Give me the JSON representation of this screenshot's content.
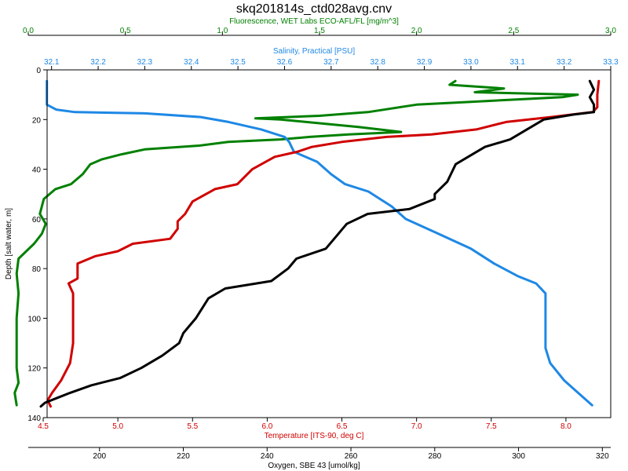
{
  "chart_data": {
    "type": "line",
    "title": "skq201814s_ctd028avg.cnv",
    "grid": false,
    "legend": "none",
    "y_axis": {
      "label": "Depth [salt water, m]",
      "range": [
        0,
        140
      ],
      "inverted": true,
      "ticks": [
        0,
        20,
        40,
        60,
        80,
        100,
        120,
        140
      ]
    },
    "x_axes": [
      {
        "id": "fluorescence",
        "label": "Fluorescence, WET Labs ECO-AFL/FL [mg/m^3]",
        "position": "top-outer",
        "color": "#008000",
        "range": [
          0.0,
          3.0
        ],
        "ticks": [
          0.0,
          0.5,
          1.0,
          1.5,
          2.0,
          2.5,
          3.0
        ],
        "tick_labels": [
          "0.0",
          "0.5",
          "1.0",
          "1.5",
          "2.0",
          "2.5",
          "3.0"
        ]
      },
      {
        "id": "salinity",
        "label": "Salinity, Practical [PSU]",
        "position": "top-inner",
        "color": "#1E88E5",
        "range": [
          32.05,
          33.3
        ],
        "ticks": [
          32.1,
          32.2,
          32.3,
          32.4,
          32.5,
          32.6,
          32.7,
          32.8,
          32.9,
          33.0,
          33.1,
          33.2,
          33.3
        ],
        "tick_labels": [
          "32.1",
          "32.2",
          "32.3",
          "32.4",
          "32.5",
          "32.6",
          "32.7",
          "32.8",
          "32.9",
          "33.0",
          "33.1",
          "33.2",
          "33.3"
        ]
      },
      {
        "id": "temperature",
        "label": "Temperature [ITS-90, deg C]",
        "position": "bottom-inner",
        "color": "#D00000",
        "range": [
          4.4,
          8.3
        ],
        "ticks": [
          4.5,
          5.0,
          5.5,
          6.0,
          6.5,
          7.0,
          7.5,
          8.0
        ],
        "tick_labels": [
          "4.5",
          "5.0",
          "5.5",
          "6.0",
          "6.5",
          "7.0",
          "7.5",
          "8.0"
        ]
      },
      {
        "id": "oxygen",
        "label": "Oxygen, SBE 43 [umol/kg]",
        "position": "bottom-outer",
        "color": "#000000",
        "range": [
          183,
          322
        ],
        "ticks": [
          200,
          220,
          240,
          260,
          280,
          300,
          320
        ],
        "tick_labels": [
          "200",
          "220",
          "240",
          "260",
          "280",
          "300",
          "320"
        ]
      }
    ],
    "series": [
      {
        "axis": "fluorescence",
        "color": "#008000",
        "points": [
          [
            2.2,
            4.5
          ],
          [
            2.17,
            6
          ],
          [
            2.45,
            7.5
          ],
          [
            2.3,
            9
          ],
          [
            2.83,
            10
          ],
          [
            2.75,
            11
          ],
          [
            2.25,
            13
          ],
          [
            2.0,
            14
          ],
          [
            1.75,
            17
          ],
          [
            1.5,
            18.5
          ],
          [
            1.17,
            19.5
          ],
          [
            1.3,
            20
          ],
          [
            1.5,
            21.5
          ],
          [
            1.7,
            23
          ],
          [
            1.92,
            25
          ],
          [
            1.65,
            26
          ],
          [
            1.45,
            27
          ],
          [
            1.3,
            28
          ],
          [
            1.03,
            29
          ],
          [
            0.88,
            30.5
          ],
          [
            0.6,
            32
          ],
          [
            0.48,
            34
          ],
          [
            0.38,
            36
          ],
          [
            0.32,
            38
          ],
          [
            0.28,
            42
          ],
          [
            0.22,
            46
          ],
          [
            0.14,
            48
          ],
          [
            0.08,
            52
          ],
          [
            0.06,
            58
          ],
          [
            0.09,
            62
          ],
          [
            0.07,
            66
          ],
          [
            0.03,
            70
          ],
          [
            -0.05,
            76
          ],
          [
            -0.06,
            82
          ],
          [
            -0.05,
            90
          ],
          [
            -0.06,
            100
          ],
          [
            -0.06,
            110
          ],
          [
            -0.06,
            120
          ],
          [
            -0.05,
            126
          ],
          [
            -0.07,
            130
          ],
          [
            -0.06,
            135
          ]
        ]
      },
      {
        "axis": "salinity",
        "color": "#1E88E5",
        "points": [
          [
            32.09,
            4.5
          ],
          [
            32.09,
            10
          ],
          [
            32.09,
            14
          ],
          [
            32.11,
            16
          ],
          [
            32.15,
            17
          ],
          [
            32.3,
            17.5
          ],
          [
            32.42,
            19
          ],
          [
            32.48,
            21
          ],
          [
            32.55,
            24
          ],
          [
            32.6,
            27
          ],
          [
            32.61,
            29
          ],
          [
            32.62,
            33
          ],
          [
            32.67,
            37
          ],
          [
            32.7,
            42
          ],
          [
            32.73,
            46
          ],
          [
            32.78,
            49
          ],
          [
            32.83,
            55
          ],
          [
            32.86,
            60
          ],
          [
            32.93,
            66
          ],
          [
            33.0,
            72
          ],
          [
            33.05,
            78
          ],
          [
            33.1,
            83
          ],
          [
            33.14,
            86
          ],
          [
            33.16,
            90
          ],
          [
            33.16,
            105
          ],
          [
            33.16,
            112
          ],
          [
            33.17,
            118
          ],
          [
            33.2,
            125
          ],
          [
            33.23,
            130
          ],
          [
            33.26,
            135
          ]
        ]
      },
      {
        "axis": "temperature",
        "color": "#D00000",
        "points": [
          [
            8.22,
            4.5
          ],
          [
            8.21,
            10
          ],
          [
            8.21,
            15
          ],
          [
            8.18,
            17
          ],
          [
            7.9,
            19
          ],
          [
            7.6,
            21
          ],
          [
            7.4,
            24
          ],
          [
            7.1,
            26
          ],
          [
            6.8,
            27
          ],
          [
            6.5,
            29
          ],
          [
            6.3,
            31
          ],
          [
            6.2,
            33
          ],
          [
            6.05,
            35
          ],
          [
            5.9,
            40
          ],
          [
            5.8,
            46
          ],
          [
            5.65,
            48
          ],
          [
            5.5,
            53
          ],
          [
            5.45,
            58
          ],
          [
            5.4,
            61
          ],
          [
            5.4,
            64
          ],
          [
            5.35,
            68
          ],
          [
            5.1,
            70
          ],
          [
            5.0,
            73
          ],
          [
            4.85,
            75
          ],
          [
            4.73,
            78
          ],
          [
            4.73,
            84
          ],
          [
            4.67,
            86
          ],
          [
            4.7,
            90
          ],
          [
            4.7,
            100
          ],
          [
            4.7,
            110
          ],
          [
            4.68,
            118
          ],
          [
            4.62,
            125
          ],
          [
            4.56,
            130
          ],
          [
            4.53,
            133
          ],
          [
            4.55,
            135.5
          ]
        ]
      },
      {
        "axis": "oxygen",
        "color": "#000000",
        "points": [
          [
            317,
            4.5
          ],
          [
            318,
            8
          ],
          [
            317,
            11
          ],
          [
            318,
            14
          ],
          [
            318,
            17
          ],
          [
            313,
            18
          ],
          [
            306,
            20
          ],
          [
            302,
            24
          ],
          [
            298,
            28
          ],
          [
            292,
            31
          ],
          [
            289,
            34
          ],
          [
            285,
            38
          ],
          [
            283,
            45
          ],
          [
            280,
            50
          ],
          [
            280,
            52
          ],
          [
            274,
            56
          ],
          [
            264,
            58
          ],
          [
            259,
            62
          ],
          [
            256,
            68
          ],
          [
            254,
            72
          ],
          [
            247,
            76
          ],
          [
            245,
            80
          ],
          [
            241,
            85
          ],
          [
            230,
            88
          ],
          [
            226,
            92
          ],
          [
            223,
            100
          ],
          [
            220,
            106
          ],
          [
            219,
            110
          ],
          [
            215,
            115
          ],
          [
            210,
            120
          ],
          [
            205,
            124
          ],
          [
            198,
            127
          ],
          [
            193,
            130
          ],
          [
            190,
            132
          ],
          [
            187,
            134
          ],
          [
            186,
            135.5
          ]
        ]
      }
    ]
  }
}
